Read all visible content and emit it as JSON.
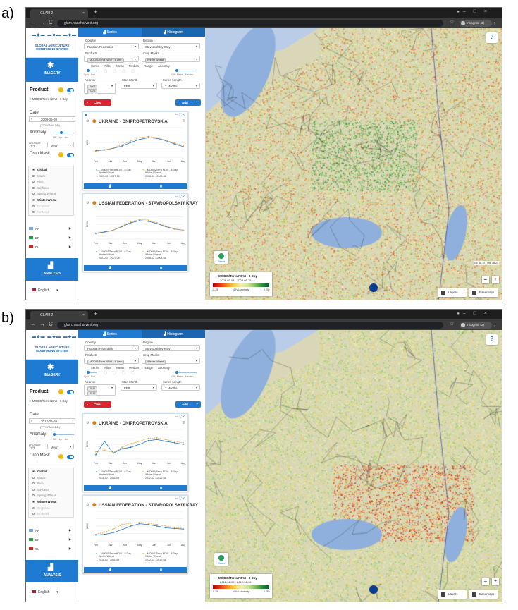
{
  "panels": [
    {
      "label": "a)",
      "browser": {
        "tab_title": "GLAM 2",
        "url": "glam.nasaharvest.org",
        "incognito": "Incognito (2)"
      },
      "logo": {
        "line1": "GLOBAL AGRICULTURE",
        "line2": "MONITORING SYSTEM"
      },
      "left": {
        "imagery": "IMAGERY",
        "product_title": "Product",
        "product_value": "MODIS/Terra NDVI - 8 Day",
        "date_title": "Date",
        "date_value": "2008-05-08",
        "date_format": "(YYYY-MM-DD)",
        "anomaly_title": "Anomaly",
        "anomaly_opts": [
          "Off",
          "1yr",
          "Avr"
        ],
        "anomaly_type_label": "ANOMALY TYPE",
        "anomaly_type": "Mean",
        "crop_mask_title": "Crop Mask",
        "crop_mask_header": "Global",
        "crop_mask_items": [
          "Maize",
          "Rice",
          "Soybean",
          "Spring Wheat",
          "Winter Wheat",
          "Cropland",
          "No Mask"
        ],
        "flags": [
          {
            "code": "AR"
          },
          {
            "code": "BR"
          },
          {
            "code": "CL"
          }
        ],
        "analysis": "ANALYSIS",
        "language": "English"
      },
      "series": {
        "tabs": [
          "Series",
          "Histogram"
        ],
        "country_label": "Country",
        "country": "Russian Federation",
        "region_label": "Region",
        "region": "Stavropolskiy Kray",
        "products_label": "Products",
        "product_chip": "MODIS/Terra NDVI - 8 Day",
        "crop_masks_label": "Crop Masks",
        "crop_mask_chip": "Winter Wheat",
        "toggles": [
          "Series",
          "Filter",
          "Mean",
          "Median",
          "Range",
          "Anomaly"
        ],
        "toggle_sub": [
          "Split",
          "Full"
        ],
        "anomaly_sub": [
          "Off",
          "Mean",
          "Median"
        ],
        "years_label": "Year(s)",
        "year_chips": [
          "2007",
          "2008"
        ],
        "start_month_label": "Start Month",
        "start_month": "FEB",
        "series_length_label": "Series Length",
        "series_length": "7 Months",
        "clear": "Clear",
        "add": "Add"
      },
      "cards": [
        {
          "title": "UKRAINE - DNIPROPETROVSK'A",
          "months": [
            "Feb",
            "Mar",
            "Apr",
            "May",
            "Jun",
            "Jul",
            "Aug"
          ],
          "ylabel": "NDVI",
          "legend": [
            {
              "l1": "MODIS/Terra NDVI - 8 Day",
              "l2": "Winter Wheat",
              "l3": "2007-02 - 2007-08"
            },
            {
              "l1": "MODIS/Terra NDVI - 8 Day",
              "l2": "Winter Wheat",
              "l3": "2008-02 - 2008-08"
            }
          ]
        },
        {
          "title": "USSIAN FEDERATION - STAVROPOLSKIY KRAY",
          "months": [
            "Feb",
            "Mar",
            "Apr",
            "May",
            "Jun",
            "Jul",
            "Aug"
          ],
          "ylabel": "NDVI",
          "legend": [
            {
              "l1": "MODIS/Terra NDVI - 8 Day",
              "l2": "Winter Wheat",
              "l3": "2007-02 - 2007-08"
            },
            {
              "l1": "MODIS/Terra NDVI - 8 Day",
              "l2": "Winter Wheat",
              "l3": "2008-02 - 2008-08"
            }
          ]
        }
      ],
      "map": {
        "help": "?",
        "reset": "Reset",
        "legend_title": "MODIS/Terra NDVI - 8 Day",
        "legend_date": "2008-05-08 - 2008-05-15",
        "legend_low": "-0.25",
        "legend_mid": "NDVI Anomaly",
        "legend_high": "0.25+",
        "layers": "Layers",
        "basemaps": "Basemaps",
        "scale": "lat: 60.72 / lng: 18.23"
      }
    },
    {
      "label": "b)",
      "browser": {
        "tab_title": "GLAM 2",
        "url": "glam.nasaharvest.org",
        "incognito": "Incognito (2)"
      },
      "logo": {
        "line1": "GLOBAL AGRICULTURE",
        "line2": "MONITORING SYSTEM"
      },
      "left": {
        "imagery": "IMAGERY",
        "product_title": "Product",
        "product_value": "MODIS/Terra NDVI - 8 Day",
        "date_title": "Date",
        "date_value": "2012-06-09",
        "date_format": "(YYYY-MM-DD)",
        "anomaly_title": "Anomaly",
        "anomaly_opts": [
          "Off",
          "1yr",
          "Avr"
        ],
        "anomaly_type_label": "ANOMALY TYPE",
        "anomaly_type": "Mean",
        "crop_mask_title": "Crop Mask",
        "crop_mask_header": "Global",
        "crop_mask_items": [
          "Maize",
          "Rice",
          "Soybean",
          "Spring Wheat",
          "Winter Wheat",
          "Cropland",
          "No Mask"
        ],
        "flags": [
          {
            "code": "AR"
          },
          {
            "code": "BR"
          },
          {
            "code": "CL"
          }
        ],
        "analysis": "ANALYSIS",
        "language": "English"
      },
      "series": {
        "tabs": [
          "Series",
          "Histogram"
        ],
        "country_label": "Country",
        "country": "Russian Federation",
        "region_label": "Region",
        "region": "Stavropolskiy Kray",
        "products_label": "Products",
        "product_chip": "MODIS/Terra NDVI - 8 Day",
        "crop_masks_label": "Crop Masks",
        "crop_mask_chip": "Winter Wheat",
        "toggles": [
          "Series",
          "Filter",
          "Mean",
          "Median",
          "Range",
          "Anomaly"
        ],
        "toggle_sub": [
          "Split",
          "Full"
        ],
        "anomaly_sub": [
          "Off",
          "Mean",
          "Median"
        ],
        "years_label": "Year(s)",
        "year_chips": [
          "2011",
          "2012"
        ],
        "start_month_label": "Start Month",
        "start_month": "FEB",
        "series_length_label": "Series Length",
        "series_length": "7 Months",
        "clear": "Clear",
        "add": "Add"
      },
      "cards": [
        {
          "title": "UKRAINE - DNIPROPETROVSK'A",
          "months": [
            "Feb",
            "Mar",
            "Apr",
            "May",
            "Jun",
            "Jul",
            "Aug"
          ],
          "ylabel": "NDVI",
          "legend": [
            {
              "l1": "MODIS/Terra NDVI - 8 Day",
              "l2": "Winter Wheat",
              "l3": "2011-02 - 2011-08"
            },
            {
              "l1": "MODIS/Terra NDVI - 8 Day",
              "l2": "Winter Wheat",
              "l3": "2012-02 - 2012-08"
            }
          ]
        },
        {
          "title": "USSIAN FEDERATION - STAVROPOLSKIY KRAY",
          "months": [
            "Feb",
            "Mar",
            "Apr",
            "May",
            "Jun",
            "Jul",
            "Aug"
          ],
          "ylabel": "NDVI",
          "legend": [
            {
              "l1": "MODIS/Terra NDVI - 8 Day",
              "l2": "Winter Wheat",
              "l3": "2011-02 - 2011-08"
            },
            {
              "l1": "MODIS/Terra NDVI - 8 Day",
              "l2": "Winter Wheat",
              "l3": "2012-02 - 2012-08"
            }
          ]
        }
      ],
      "map": {
        "help": "?",
        "reset": "Reset",
        "legend_title": "MODIS/Terra NDVI - 8 Day",
        "legend_date": "2012-06-09 - 2012-06-16",
        "legend_low": "-0.25",
        "legend_mid": "NDVI Anomaly",
        "legend_high": "0.25+",
        "layers": "Layers",
        "basemaps": "Basemaps",
        "scale": ""
      }
    }
  ],
  "colors": {
    "accent": "#1f7bd1",
    "clear": "#d9232e",
    "series1": "#1f7bd1",
    "series2": "#f0a640"
  }
}
